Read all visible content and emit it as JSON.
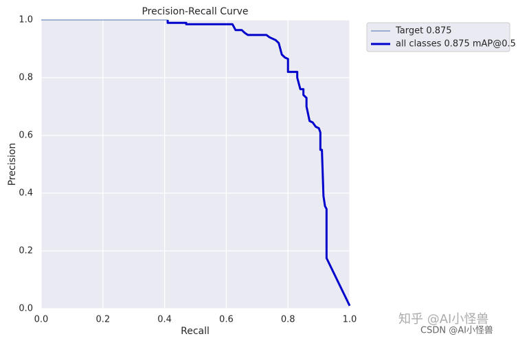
{
  "chart_data": {
    "type": "line",
    "title": "Precision-Recall Curve",
    "xlabel": "Recall",
    "ylabel": "Precision",
    "xlim": [
      0,
      1
    ],
    "ylim": [
      0,
      1
    ],
    "xticks": [
      {
        "value": 0,
        "label": "0.0"
      },
      0.2,
      0.4,
      0.6,
      0.8,
      {
        "value": 1,
        "label": "1.0"
      }
    ],
    "yticks": [
      {
        "value": 0,
        "label": "0.0"
      },
      0.2,
      0.4,
      0.6,
      0.8,
      {
        "value": 1,
        "label": "1.0"
      }
    ],
    "grid": true,
    "legend": "outside-upper-right",
    "series": [
      {
        "name": "Target 0.875",
        "color": "#4c72b0",
        "width": 1,
        "x": [
          0,
          0.41,
          0.41,
          0.47,
          0.47,
          0.62,
          0.63,
          0.65,
          0.66,
          0.67,
          0.73,
          0.74,
          0.76,
          0.77,
          0.78,
          0.79,
          0.8,
          0.8,
          0.83,
          0.83,
          0.84,
          0.85,
          0.85,
          0.86,
          0.86,
          0.87,
          0.88,
          0.89,
          0.9,
          0.905,
          0.905,
          0.91,
          0.915,
          0.92,
          0.925,
          0.925,
          1
        ],
        "values": [
          1,
          1,
          0.99,
          0.99,
          0.985,
          0.985,
          0.965,
          0.965,
          0.955,
          0.948,
          0.948,
          0.94,
          0.93,
          0.92,
          0.88,
          0.87,
          0.865,
          0.82,
          0.82,
          0.8,
          0.76,
          0.76,
          0.74,
          0.73,
          0.7,
          0.65,
          0.645,
          0.63,
          0.625,
          0.61,
          0.55,
          0.55,
          0.39,
          0.355,
          0.345,
          0.175,
          0.01
        ]
      },
      {
        "name": "all classes 0.875 mAP@0.5",
        "color": "#0000cc",
        "width": 3,
        "x": [
          0.41,
          0.41,
          0.47,
          0.47,
          0.62,
          0.63,
          0.65,
          0.66,
          0.67,
          0.73,
          0.74,
          0.76,
          0.77,
          0.78,
          0.79,
          0.8,
          0.8,
          0.83,
          0.83,
          0.84,
          0.85,
          0.85,
          0.86,
          0.86,
          0.87,
          0.88,
          0.89,
          0.9,
          0.905,
          0.905,
          0.91,
          0.915,
          0.92,
          0.925,
          0.925,
          1
        ],
        "values": [
          1,
          0.99,
          0.99,
          0.985,
          0.985,
          0.965,
          0.965,
          0.955,
          0.948,
          0.948,
          0.94,
          0.93,
          0.92,
          0.88,
          0.87,
          0.865,
          0.82,
          0.82,
          0.8,
          0.76,
          0.76,
          0.74,
          0.73,
          0.7,
          0.65,
          0.645,
          0.63,
          0.625,
          0.61,
          0.55,
          0.55,
          0.39,
          0.355,
          0.345,
          0.175,
          0.01
        ]
      }
    ],
    "watermarks": [
      "知乎 @AI小怪兽",
      "CSDN @AI小怪兽"
    ]
  }
}
